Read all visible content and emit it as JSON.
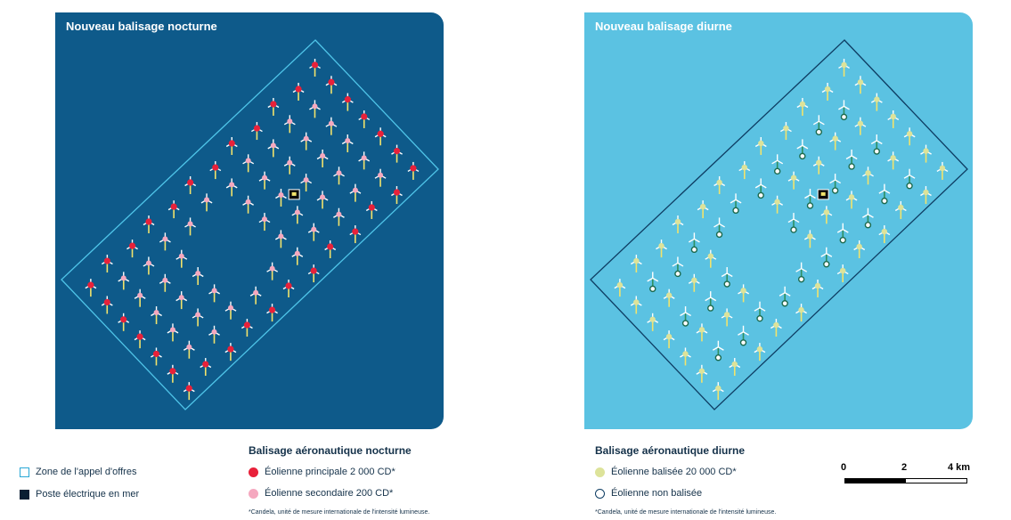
{
  "panels": {
    "night": {
      "title": "Nouveau balisage nocturne"
    },
    "day": {
      "title": "Nouveau balisage diurne"
    }
  },
  "legend": {
    "zone_label": "Zone de l'appel d'offres",
    "poste_label": "Poste électrique en mer",
    "night_heading": "Balisage aéronautique nocturne",
    "night_primary": "Éolienne principale 2 000 CD*",
    "night_secondary": "Éolienne secondaire 200 CD*",
    "day_heading": "Balisage aéronautique diurne",
    "day_marked": "Éolienne balisée 20 000 CD*",
    "day_unmarked": "Éolienne non balisée",
    "footnote": "*Candela, unité de mesure internationale de l'intensité lumineuse."
  },
  "scale": {
    "labels": [
      "0",
      "2",
      "4 km"
    ]
  },
  "colors": {
    "night_bg": "#0e5a8a",
    "day_bg": "#5bc2e2",
    "zone_stroke_night": "#4fc4e8",
    "zone_stroke_day": "#0e3d63",
    "primary_red": "#e8213a",
    "secondary_pink": "#f5a8bf",
    "marked_yellow": "#dde39a",
    "unmarked_ring": "#1c6a4e",
    "poste": "#0a0a0a"
  }
}
